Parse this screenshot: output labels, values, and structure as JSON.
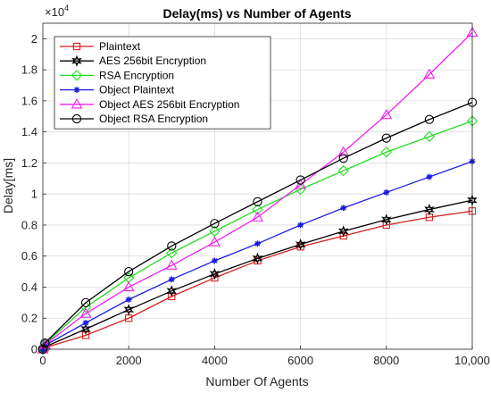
{
  "chart_data": {
    "type": "line",
    "title": "Delay(ms) vs Number of Agents",
    "xlabel": "Number Of Agents",
    "ylabel": "Delay[ms]",
    "y_multiplier_label": "×10",
    "y_multiplier_exponent": "4",
    "xlim": [
      0,
      10000
    ],
    "ylim": [
      0,
      21000
    ],
    "x_ticks": [
      0,
      2000,
      4000,
      6000,
      8000,
      10000
    ],
    "x_tick_labels": [
      "0",
      "2000",
      "4000",
      "6000",
      "8000",
      "10,000"
    ],
    "y_ticks": [
      0,
      2000,
      4000,
      6000,
      8000,
      10000,
      12000,
      14000,
      16000,
      18000,
      20000
    ],
    "y_tick_labels": [
      "0",
      "0.2",
      "0.4",
      "0.6",
      "0.8",
      "1",
      "1.2",
      "1.4",
      "1.6",
      "1.8",
      "2"
    ],
    "grid": true,
    "legend_position": "top-left",
    "x": [
      0,
      50,
      1000,
      2000,
      3000,
      4000,
      5000,
      6000,
      7000,
      8000,
      9000,
      10000
    ],
    "series": [
      {
        "name": "Plaintext",
        "color": "#d62020",
        "marker": "square",
        "values": [
          0,
          100,
          900,
          2000,
          3400,
          4600,
          5700,
          6600,
          7300,
          8000,
          8500,
          8900
        ]
      },
      {
        "name": "AES 256bit Encryption",
        "color": "#000000",
        "marker": "hexagram",
        "values": [
          0,
          150,
          1300,
          2550,
          3750,
          4850,
          5850,
          6750,
          7600,
          8350,
          9000,
          9600
        ]
      },
      {
        "name": "RSA Encryption",
        "color": "#22dd22",
        "marker": "diamond",
        "values": [
          0,
          350,
          2700,
          4600,
          6200,
          7600,
          9000,
          10300,
          11500,
          12700,
          13700,
          14700
        ]
      },
      {
        "name": "Object Plaintext",
        "color": "#1a1ae6",
        "marker": "asterisk",
        "values": [
          0,
          250,
          1700,
          3200,
          4500,
          5700,
          6800,
          8000,
          9100,
          10100,
          11100,
          12100
        ]
      },
      {
        "name": "Object AES 256bit Encryption",
        "color": "#ee22ee",
        "marker": "triangle",
        "values": [
          0,
          300,
          2300,
          4000,
          5400,
          6900,
          8500,
          10600,
          12700,
          15100,
          17700,
          20400
        ]
      },
      {
        "name": "Object RSA Encryption",
        "color": "#000000",
        "marker": "circle",
        "values": [
          0,
          400,
          3000,
          5000,
          6650,
          8100,
          9500,
          10900,
          12300,
          13600,
          14800,
          15900
        ]
      }
    ]
  }
}
